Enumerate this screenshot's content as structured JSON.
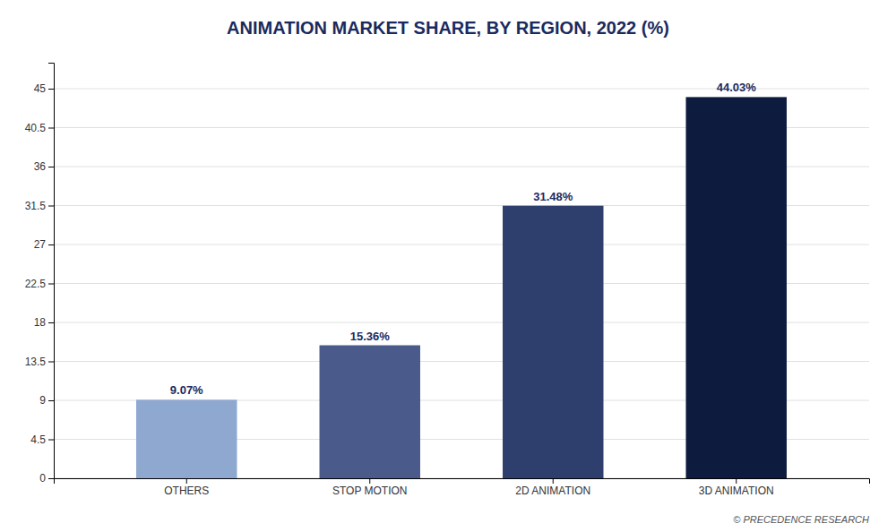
{
  "chart_data": {
    "type": "bar",
    "title": "ANIMATION MARKET SHARE, BY REGION, 2022 (%)",
    "categories": [
      "OTHERS",
      "STOP MOTION",
      "2D ANIMATION",
      "3D ANIMATION"
    ],
    "values": [
      9.07,
      15.36,
      31.48,
      44.03
    ],
    "value_labels": [
      "9.07%",
      "15.36%",
      "31.48%",
      "44.03%"
    ],
    "data_labels": true,
    "colors": [
      "#8fa8d0",
      "#4a5a8a",
      "#2e3f6e",
      "#0d1b3e"
    ],
    "ylim": [
      0,
      48
    ],
    "yticks": [
      0,
      4.5,
      9,
      13.5,
      18,
      22.5,
      27,
      31.5,
      36,
      40.5,
      45
    ],
    "grid": true,
    "annotations": [
      "© PRECEDENCE RESEARCH"
    ]
  }
}
